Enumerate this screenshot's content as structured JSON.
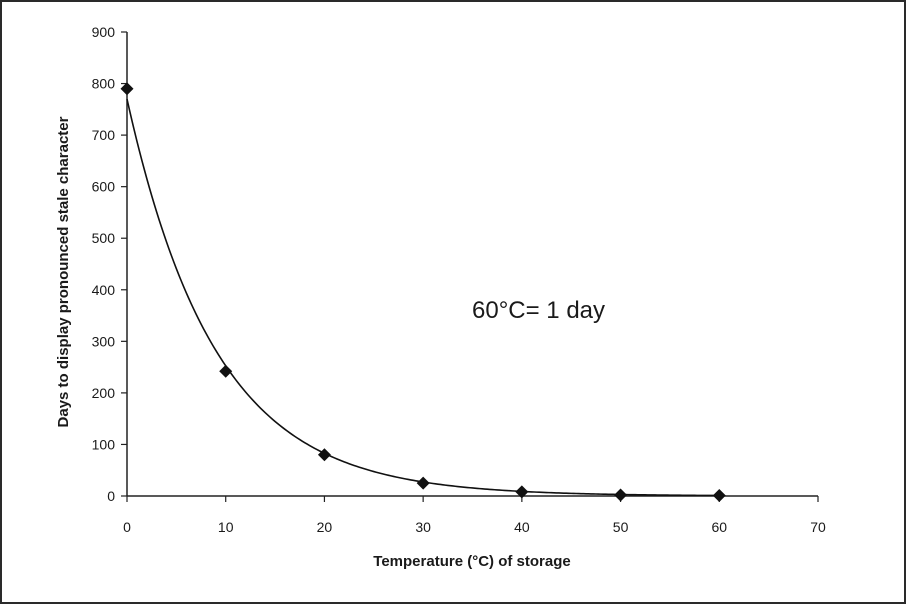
{
  "chart_data": {
    "type": "scatter",
    "title": "",
    "xlabel": "Temperature (°C) of storage",
    "ylabel": "Days to display pronounced stale character",
    "xlim": [
      0,
      70
    ],
    "ylim": [
      0,
      900
    ],
    "xticks": [
      0,
      10,
      20,
      30,
      40,
      50,
      60,
      70
    ],
    "yticks": [
      0,
      100,
      200,
      300,
      400,
      500,
      600,
      700,
      800,
      900
    ],
    "grid": false,
    "legend": "none",
    "series": [
      {
        "marker": "diamond",
        "color": "#111111",
        "x": [
          0,
          10,
          20,
          30,
          40,
          50,
          60
        ],
        "y": [
          790,
          242,
          80,
          25,
          8,
          2,
          1
        ]
      }
    ],
    "trendline": {
      "type": "exponential",
      "y0": 770,
      "rate": 0.1115,
      "color": "#111111"
    },
    "annotations": [
      {
        "text": "60°C= 1 day"
      }
    ]
  }
}
